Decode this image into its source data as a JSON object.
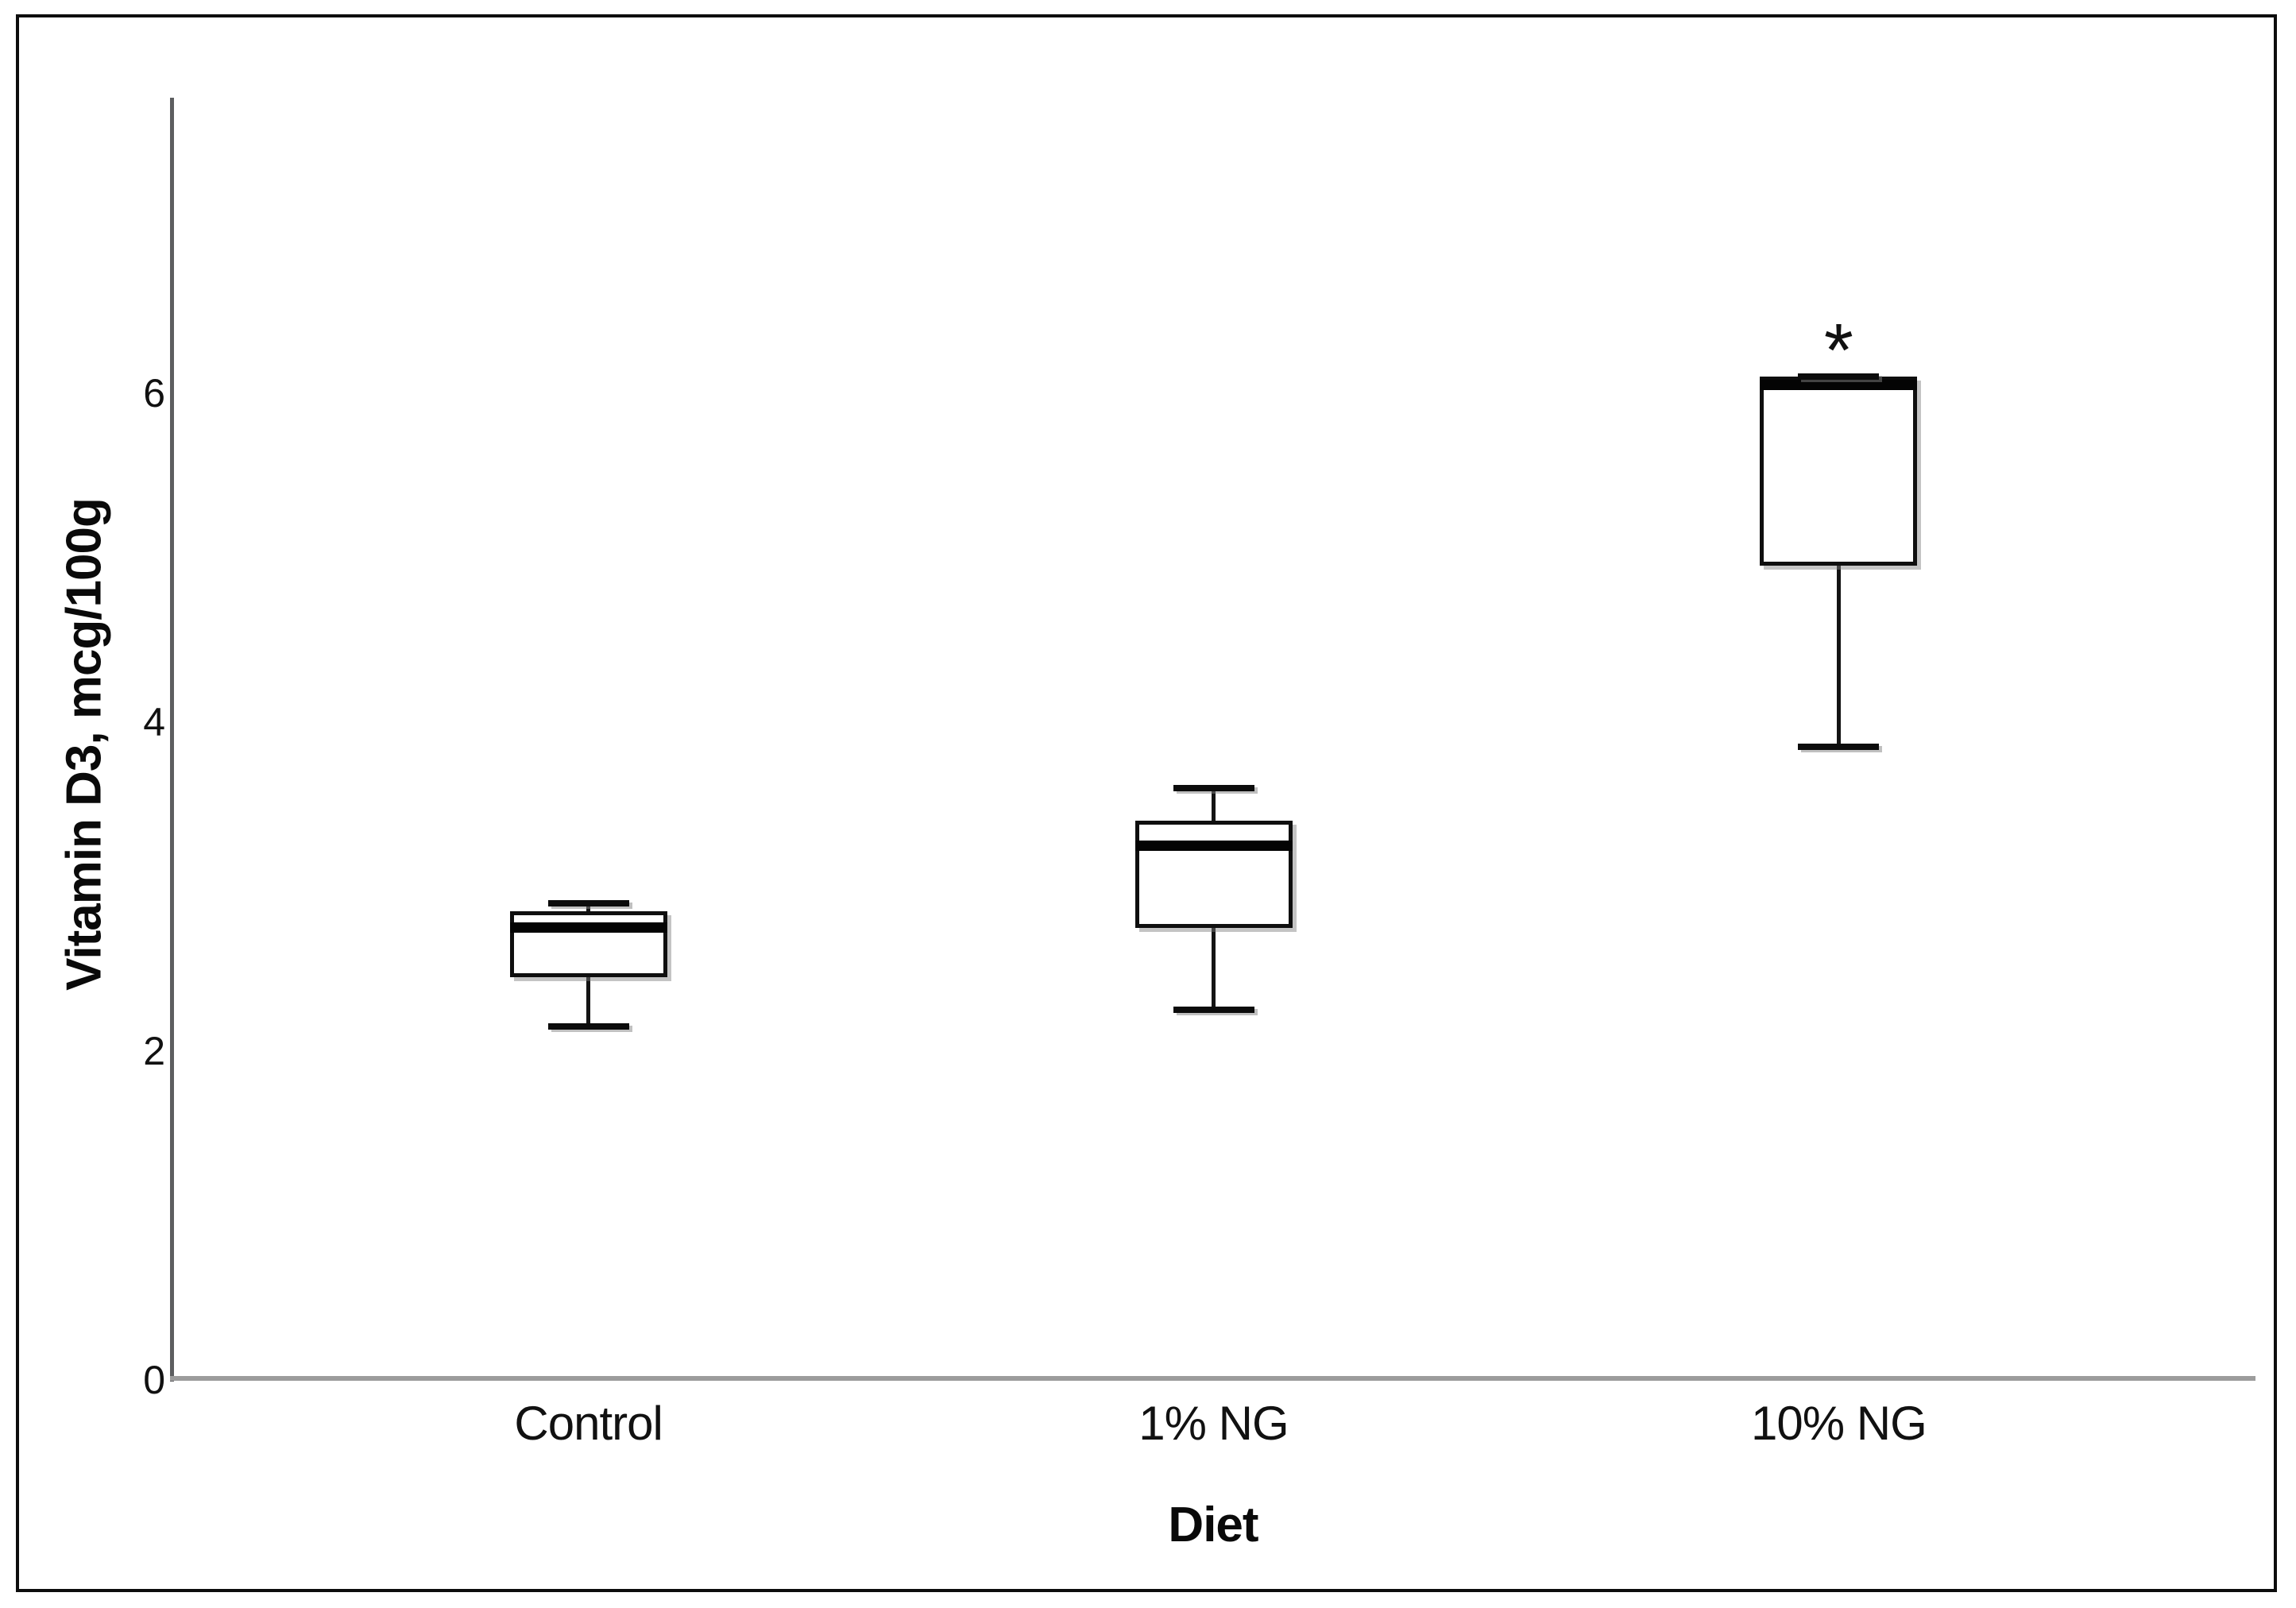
{
  "chart_data": {
    "type": "boxplot",
    "title": "",
    "xlabel": "Diet",
    "ylabel": "Vitamin D3, mcg/100g",
    "categories": [
      "Control",
      "1% NG",
      "10% NG"
    ],
    "yticks": [
      0,
      2,
      4,
      6
    ],
    "ylim": [
      0,
      7.8
    ],
    "grid": false,
    "legend_position": "none",
    "series": [
      {
        "name": "Control",
        "whisker_low": 2.15,
        "q1": 2.45,
        "median": 2.75,
        "q3": 2.85,
        "whisker_high": 2.9
      },
      {
        "name": "1% NG",
        "whisker_low": 2.25,
        "q1": 2.75,
        "median": 3.25,
        "q3": 3.4,
        "whisker_high": 3.6
      },
      {
        "name": "10% NG",
        "whisker_low": 3.85,
        "q1": 4.95,
        "median": 6.05,
        "q3": 6.1,
        "whisker_high": 6.1
      }
    ],
    "annotations": [
      {
        "text": "*",
        "category": "10% NG",
        "y": 6.4
      }
    ]
  }
}
